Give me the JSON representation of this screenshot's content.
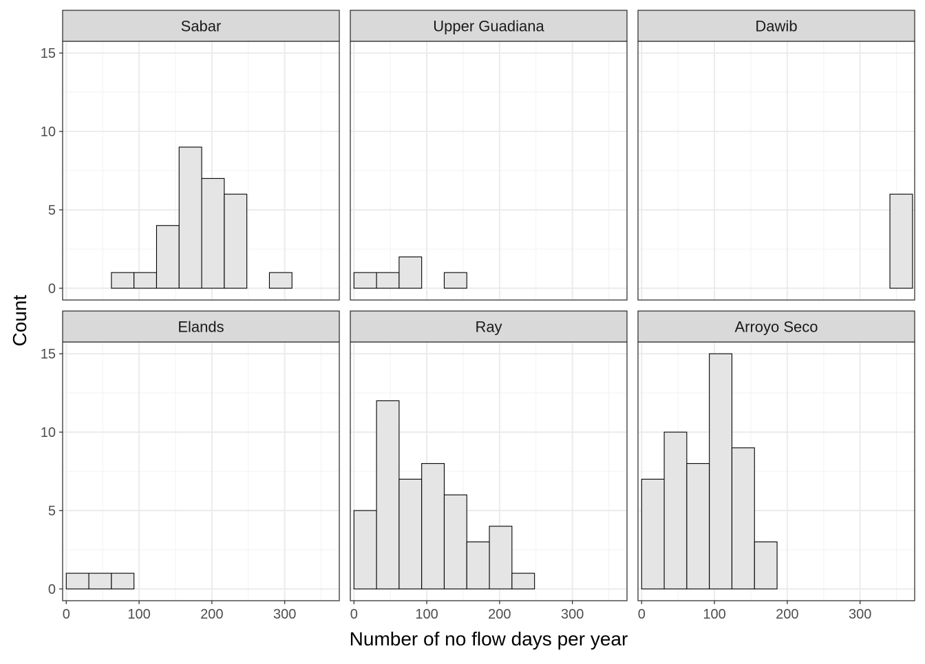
{
  "chart_data": {
    "type": "bar",
    "subtype": "faceted-histogram",
    "xlabel": "Number of no flow days per year",
    "ylabel": "Count",
    "xlim": [
      -5,
      375
    ],
    "ylim": [
      -0.75,
      15.75
    ],
    "x_ticks": [
      0,
      100,
      200,
      300
    ],
    "y_ticks": [
      0,
      5,
      10,
      15
    ],
    "bin_edges": [
      0,
      31,
      62,
      93,
      124,
      155,
      186,
      217,
      248,
      279,
      310,
      341,
      372
    ],
    "grid": true,
    "fill_color": "#e5e5e5",
    "outline_color": "#000000",
    "strip_color": "#d9d9d9",
    "facets": [
      {
        "name": "Sabar",
        "counts": [
          0,
          0,
          1,
          1,
          4,
          9,
          7,
          6,
          0,
          1,
          0,
          0
        ]
      },
      {
        "name": "Upper Guadiana",
        "counts": [
          1,
          1,
          2,
          0,
          1,
          0,
          0,
          0,
          0,
          0,
          0,
          0
        ]
      },
      {
        "name": "Dawib",
        "counts": [
          0,
          0,
          0,
          0,
          0,
          0,
          0,
          0,
          0,
          0,
          0,
          6
        ]
      },
      {
        "name": "Elands",
        "counts": [
          1,
          1,
          1,
          0,
          0,
          0,
          0,
          0,
          0,
          0,
          0,
          0
        ]
      },
      {
        "name": "Ray",
        "counts": [
          5,
          12,
          7,
          8,
          6,
          3,
          4,
          1,
          0,
          0,
          0,
          0
        ]
      },
      {
        "name": "Arroyo Seco",
        "counts": [
          7,
          10,
          8,
          15,
          9,
          3,
          0,
          0,
          0,
          0,
          0,
          0
        ]
      }
    ]
  }
}
